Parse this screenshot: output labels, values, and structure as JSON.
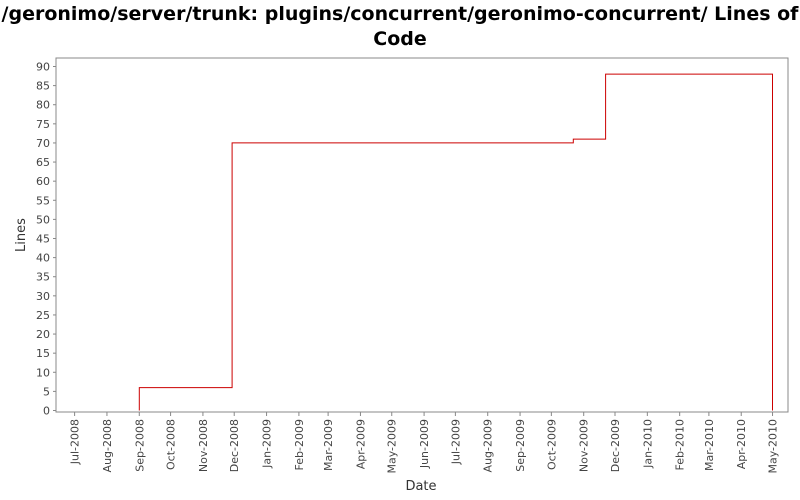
{
  "chart_data": {
    "type": "line",
    "title": "/geronimo/server/trunk: plugins/concurrent/geronimo-concurrent/ Lines of Code",
    "xlabel": "Date",
    "ylabel": "Lines",
    "ylim": [
      0,
      92
    ],
    "y_ticks": [
      0,
      5,
      10,
      15,
      20,
      25,
      30,
      35,
      40,
      45,
      50,
      55,
      60,
      65,
      70,
      75,
      80,
      85,
      90
    ],
    "x_ticks": [
      "Jul-2008",
      "Aug-2008",
      "Sep-2008",
      "Oct-2008",
      "Nov-2008",
      "Dec-2008",
      "Jan-2009",
      "Feb-2009",
      "Mar-2009",
      "Apr-2009",
      "May-2009",
      "Jun-2009",
      "Jul-2009",
      "Aug-2009",
      "Sep-2009",
      "Oct-2009",
      "Nov-2009",
      "Dec-2009",
      "Jan-2010",
      "Feb-2010",
      "Mar-2010",
      "Apr-2010",
      "May-2010"
    ],
    "xlim": [
      "2008-06-17",
      "2010-05-12"
    ],
    "grid": false,
    "step": true,
    "series": [
      {
        "color": "#cc0000",
        "points": [
          {
            "x": "2008-09-01",
            "y": 6
          },
          {
            "x": "2008-11-29",
            "y": 70
          },
          {
            "x": "2009-10-22",
            "y": 71
          },
          {
            "x": "2009-11-22",
            "y": 88
          },
          {
            "x": "2010-05-01",
            "y": 0
          }
        ]
      }
    ]
  }
}
